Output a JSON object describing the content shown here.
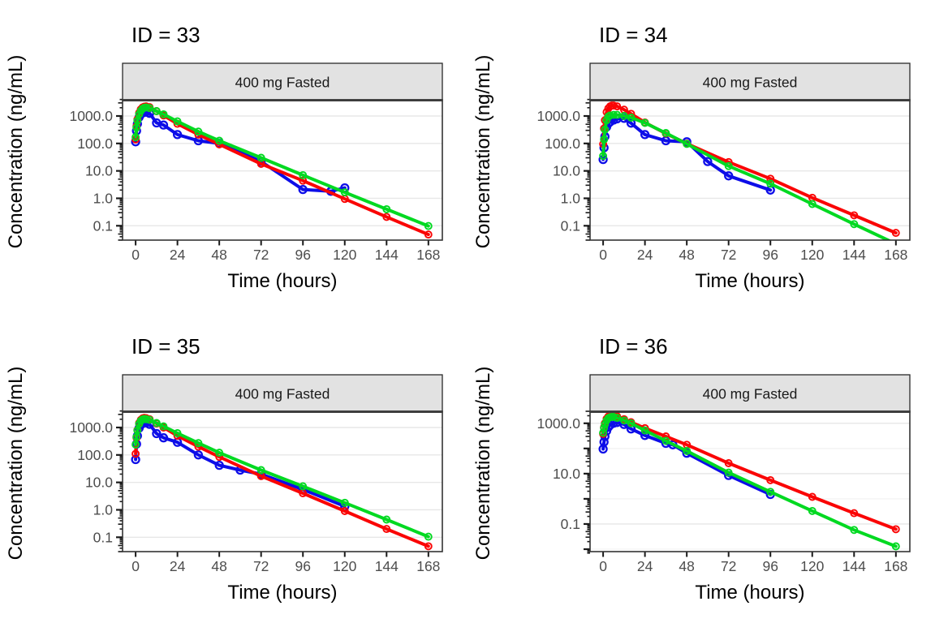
{
  "figure": {
    "kind": "faceted-pk-concentration-time-plot",
    "colors": {
      "observed_blue": "#0D0DE8",
      "prediction_red": "#FA0505",
      "prediction_green": "#00D921",
      "strip_background": "#E2E2E2",
      "strip_border": "#2A2A2A",
      "panel_border": "#333333",
      "grid_major": "#E7E7E7",
      "grid_minor": "#F2F2F2",
      "tick_color": "#1A1A1A",
      "tick_label_color": "#4D4D4D",
      "title_color": "#000000"
    }
  },
  "chart_data": [
    {
      "type": "line",
      "id": "33",
      "title": "ID = 33",
      "strip_label": "400 mg Fasted",
      "xlabel": "Time (hours)",
      "ylabel": "Concentration (ng/mL)",
      "x_ticks": [
        0,
        24,
        48,
        72,
        96,
        120,
        144,
        168
      ],
      "xlim": [
        -7.5,
        176
      ],
      "y_scale": "log10",
      "y_tick_values": [
        1000,
        100,
        10,
        1,
        0.1
      ],
      "y_tick_labels": [
        "1000.0",
        "100.0",
        "10.0",
        "1.0",
        "0.1"
      ],
      "ylim": [
        0.03,
        3900
      ],
      "grid": "horizontal-only",
      "legend": "none",
      "series": [
        {
          "name": "observed",
          "color_key": "observed_blue",
          "observed": true,
          "points": [
            [
              0,
              115
            ],
            [
              0.5,
              290
            ],
            [
              1,
              520
            ],
            [
              2,
              900
            ],
            [
              3,
              1150
            ],
            [
              4,
              1300
            ],
            [
              5,
              1400
            ],
            [
              6,
              1380
            ],
            [
              8,
              1250
            ],
            [
              12,
              560
            ],
            [
              16,
              470
            ],
            [
              24,
              210
            ],
            [
              36,
              125
            ],
            [
              48,
              100
            ],
            [
              72,
              22
            ],
            [
              96,
              2.1
            ],
            [
              112,
              1.8
            ],
            [
              120,
              2.4
            ]
          ]
        },
        {
          "name": "prediction-1",
          "color_key": "prediction_red",
          "observed": false,
          "points": [
            [
              0,
              140
            ],
            [
              0.5,
              420
            ],
            [
              1,
              750
            ],
            [
              2,
              1300
            ],
            [
              3,
              1750
            ],
            [
              4,
              2050
            ],
            [
              5,
              2200
            ],
            [
              6,
              2250
            ],
            [
              8,
              2100
            ],
            [
              12,
              1500
            ],
            [
              16,
              1050
            ],
            [
              24,
              520
            ],
            [
              36,
              210
            ],
            [
              48,
              92
            ],
            [
              72,
              18
            ],
            [
              96,
              4.4
            ],
            [
              120,
              0.95
            ],
            [
              144,
              0.21
            ],
            [
              168,
              0.048
            ]
          ]
        },
        {
          "name": "prediction-2",
          "color_key": "prediction_green",
          "observed": false,
          "points": [
            [
              0,
              170
            ],
            [
              0.5,
              380
            ],
            [
              1,
              680
            ],
            [
              2,
              1150
            ],
            [
              3,
              1550
            ],
            [
              4,
              1850
            ],
            [
              5,
              2000
            ],
            [
              6,
              2050
            ],
            [
              8,
              1950
            ],
            [
              12,
              1500
            ],
            [
              16,
              1150
            ],
            [
              24,
              640
            ],
            [
              36,
              270
            ],
            [
              48,
              125
            ],
            [
              72,
              30
            ],
            [
              96,
              7
            ],
            [
              120,
              1.65
            ],
            [
              144,
              0.4
            ],
            [
              168,
              0.098
            ]
          ]
        }
      ]
    },
    {
      "type": "line",
      "id": "34",
      "title": "ID = 34",
      "strip_label": "400 mg Fasted",
      "xlabel": "Time (hours)",
      "ylabel": "Concentration (ng/mL)",
      "x_ticks": [
        0,
        24,
        48,
        72,
        96,
        120,
        144,
        168
      ],
      "xlim": [
        -7.5,
        176
      ],
      "y_scale": "log10",
      "y_tick_values": [
        1000,
        100,
        10,
        1,
        0.1
      ],
      "y_tick_labels": [
        "1000.0",
        "100.0",
        "10.0",
        "1.0",
        "0.1"
      ],
      "ylim": [
        0.03,
        3900
      ],
      "grid": "horizontal-only",
      "legend": "none",
      "series": [
        {
          "name": "observed",
          "color_key": "observed_blue",
          "observed": true,
          "points": [
            [
              0,
              26
            ],
            [
              0.5,
              70
            ],
            [
              1,
              180
            ],
            [
              2,
              400
            ],
            [
              3,
              530
            ],
            [
              4,
              610
            ],
            [
              6,
              710
            ],
            [
              8,
              790
            ],
            [
              12,
              820
            ],
            [
              16,
              550
            ],
            [
              24,
              210
            ],
            [
              36,
              125
            ],
            [
              48,
              115
            ],
            [
              60,
              22
            ],
            [
              72,
              6.6
            ],
            [
              96,
              2
            ]
          ]
        },
        {
          "name": "prediction-1",
          "color_key": "prediction_red",
          "observed": false,
          "points": [
            [
              0,
              95
            ],
            [
              0.5,
              350
            ],
            [
              1,
              700
            ],
            [
              2,
              1400
            ],
            [
              3,
              1900
            ],
            [
              4,
              2250
            ],
            [
              5,
              2400
            ],
            [
              6,
              2400
            ],
            [
              8,
              2250
            ],
            [
              12,
              1700
            ],
            [
              16,
              1200
            ],
            [
              24,
              580
            ],
            [
              36,
              230
            ],
            [
              48,
              98
            ],
            [
              72,
              21
            ],
            [
              96,
              5.2
            ],
            [
              120,
              1.05
            ],
            [
              144,
              0.24
            ],
            [
              168,
              0.055
            ]
          ]
        },
        {
          "name": "prediction-2",
          "color_key": "prediction_green",
          "observed": false,
          "points": [
            [
              0,
              35
            ],
            [
              0.5,
              140
            ],
            [
              1,
              320
            ],
            [
              2,
              700
            ],
            [
              3,
              950
            ],
            [
              4,
              1050
            ],
            [
              6,
              1100
            ],
            [
              8,
              1100
            ],
            [
              12,
              1000
            ],
            [
              16,
              870
            ],
            [
              24,
              560
            ],
            [
              36,
              240
            ],
            [
              48,
              96
            ],
            [
              72,
              15
            ],
            [
              96,
              3.4
            ],
            [
              120,
              0.62
            ],
            [
              144,
              0.115
            ],
            [
              168,
              0.022
            ]
          ]
        }
      ]
    },
    {
      "type": "line",
      "id": "35",
      "title": "ID = 35",
      "strip_label": "400 mg Fasted",
      "xlabel": "Time (hours)",
      "ylabel": "Concentration (ng/mL)",
      "x_ticks": [
        0,
        24,
        48,
        72,
        96,
        120,
        144,
        168
      ],
      "xlim": [
        -7.5,
        176
      ],
      "y_scale": "log10",
      "y_tick_values": [
        1000,
        100,
        10,
        1,
        0.1
      ],
      "y_tick_labels": [
        "1000.0",
        "100.0",
        "10.0",
        "1.0",
        "0.1"
      ],
      "ylim": [
        0.03,
        3900
      ],
      "grid": "horizontal-only",
      "legend": "none",
      "series": [
        {
          "name": "observed",
          "color_key": "observed_blue",
          "observed": true,
          "points": [
            [
              0,
              68
            ],
            [
              0.5,
              250
            ],
            [
              1,
              500
            ],
            [
              2,
              950
            ],
            [
              3,
              1250
            ],
            [
              4,
              1450
            ],
            [
              5,
              1500
            ],
            [
              6,
              1480
            ],
            [
              8,
              1300
            ],
            [
              12,
              600
            ],
            [
              16,
              420
            ],
            [
              24,
              290
            ],
            [
              36,
              100
            ],
            [
              48,
              42
            ],
            [
              60,
              28
            ],
            [
              72,
              20
            ],
            [
              96,
              5.5
            ],
            [
              120,
              1.35
            ]
          ]
        },
        {
          "name": "prediction-1",
          "color_key": "prediction_red",
          "observed": false,
          "points": [
            [
              0,
              110
            ],
            [
              0.5,
              420
            ],
            [
              1,
              800
            ],
            [
              2,
              1450
            ],
            [
              3,
              1900
            ],
            [
              4,
              2150
            ],
            [
              5,
              2250
            ],
            [
              6,
              2200
            ],
            [
              8,
              2000
            ],
            [
              12,
              1400
            ],
            [
              16,
              1000
            ],
            [
              24,
              500
            ],
            [
              36,
              200
            ],
            [
              48,
              85
            ],
            [
              72,
              17
            ],
            [
              96,
              4
            ],
            [
              120,
              0.9
            ],
            [
              144,
              0.2
            ],
            [
              168,
              0.047
            ]
          ]
        },
        {
          "name": "prediction-2",
          "color_key": "prediction_green",
          "observed": false,
          "points": [
            [
              0,
              240
            ],
            [
              0.5,
              450
            ],
            [
              1,
              780
            ],
            [
              2,
              1350
            ],
            [
              3,
              1750
            ],
            [
              4,
              1980
            ],
            [
              5,
              2050
            ],
            [
              6,
              2020
            ],
            [
              8,
              1900
            ],
            [
              12,
              1450
            ],
            [
              16,
              1100
            ],
            [
              24,
              620
            ],
            [
              36,
              270
            ],
            [
              48,
              120
            ],
            [
              72,
              28
            ],
            [
              96,
              7.2
            ],
            [
              120,
              1.8
            ],
            [
              144,
              0.44
            ],
            [
              168,
              0.105
            ]
          ]
        }
      ]
    },
    {
      "type": "line",
      "id": "36",
      "title": "ID = 36",
      "strip_label": "400 mg Fasted",
      "xlabel": "Time (hours)",
      "ylabel": "Concentration (ng/mL)",
      "x_ticks": [
        0,
        24,
        48,
        72,
        96,
        120,
        144,
        168
      ],
      "xlim": [
        -7.5,
        176
      ],
      "y_scale": "log10",
      "y_tick_values": [
        1000,
        10,
        0.1
      ],
      "y_tick_labels": [
        "1000.0",
        "10.0",
        "0.1"
      ],
      "ylim": [
        0.008,
        3000
      ],
      "grid": "horizontal-only",
      "legend": "none",
      "series": [
        {
          "name": "observed",
          "color_key": "observed_blue",
          "observed": true,
          "points": [
            [
              0,
              95
            ],
            [
              0.5,
              180
            ],
            [
              1,
              300
            ],
            [
              2,
              500
            ],
            [
              3,
              700
            ],
            [
              4,
              850
            ],
            [
              6,
              1000
            ],
            [
              8,
              1080
            ],
            [
              12,
              900
            ],
            [
              16,
              600
            ],
            [
              24,
              330
            ],
            [
              36,
              160
            ],
            [
              40,
              140
            ],
            [
              48,
              65
            ],
            [
              72,
              8.5
            ],
            [
              96,
              1.5
            ]
          ]
        },
        {
          "name": "prediction-1",
          "color_key": "prediction_red",
          "observed": false,
          "points": [
            [
              0,
              380
            ],
            [
              0.5,
              700
            ],
            [
              1,
              1000
            ],
            [
              2,
              1500
            ],
            [
              3,
              1850
            ],
            [
              4,
              2050
            ],
            [
              5,
              2100
            ],
            [
              6,
              2050
            ],
            [
              8,
              1900
            ],
            [
              12,
              1450
            ],
            [
              16,
              1100
            ],
            [
              24,
              640
            ],
            [
              36,
              300
            ],
            [
              48,
              140
            ],
            [
              72,
              26
            ],
            [
              96,
              5.5
            ],
            [
              120,
              1.2
            ],
            [
              144,
              0.27
            ],
            [
              168,
              0.062
            ]
          ]
        },
        {
          "name": "prediction-2",
          "color_key": "prediction_green",
          "observed": false,
          "points": [
            [
              0,
              420
            ],
            [
              0.5,
              650
            ],
            [
              1,
              900
            ],
            [
              2,
              1300
            ],
            [
              3,
              1600
            ],
            [
              4,
              1750
            ],
            [
              5,
              1800
            ],
            [
              6,
              1780
            ],
            [
              8,
              1650
            ],
            [
              12,
              1300
            ],
            [
              16,
              1000
            ],
            [
              24,
              520
            ],
            [
              36,
              200
            ],
            [
              48,
              80
            ],
            [
              72,
              11
            ],
            [
              96,
              1.9
            ],
            [
              120,
              0.33
            ],
            [
              144,
              0.058
            ],
            [
              168,
              0.013
            ]
          ]
        }
      ]
    }
  ]
}
